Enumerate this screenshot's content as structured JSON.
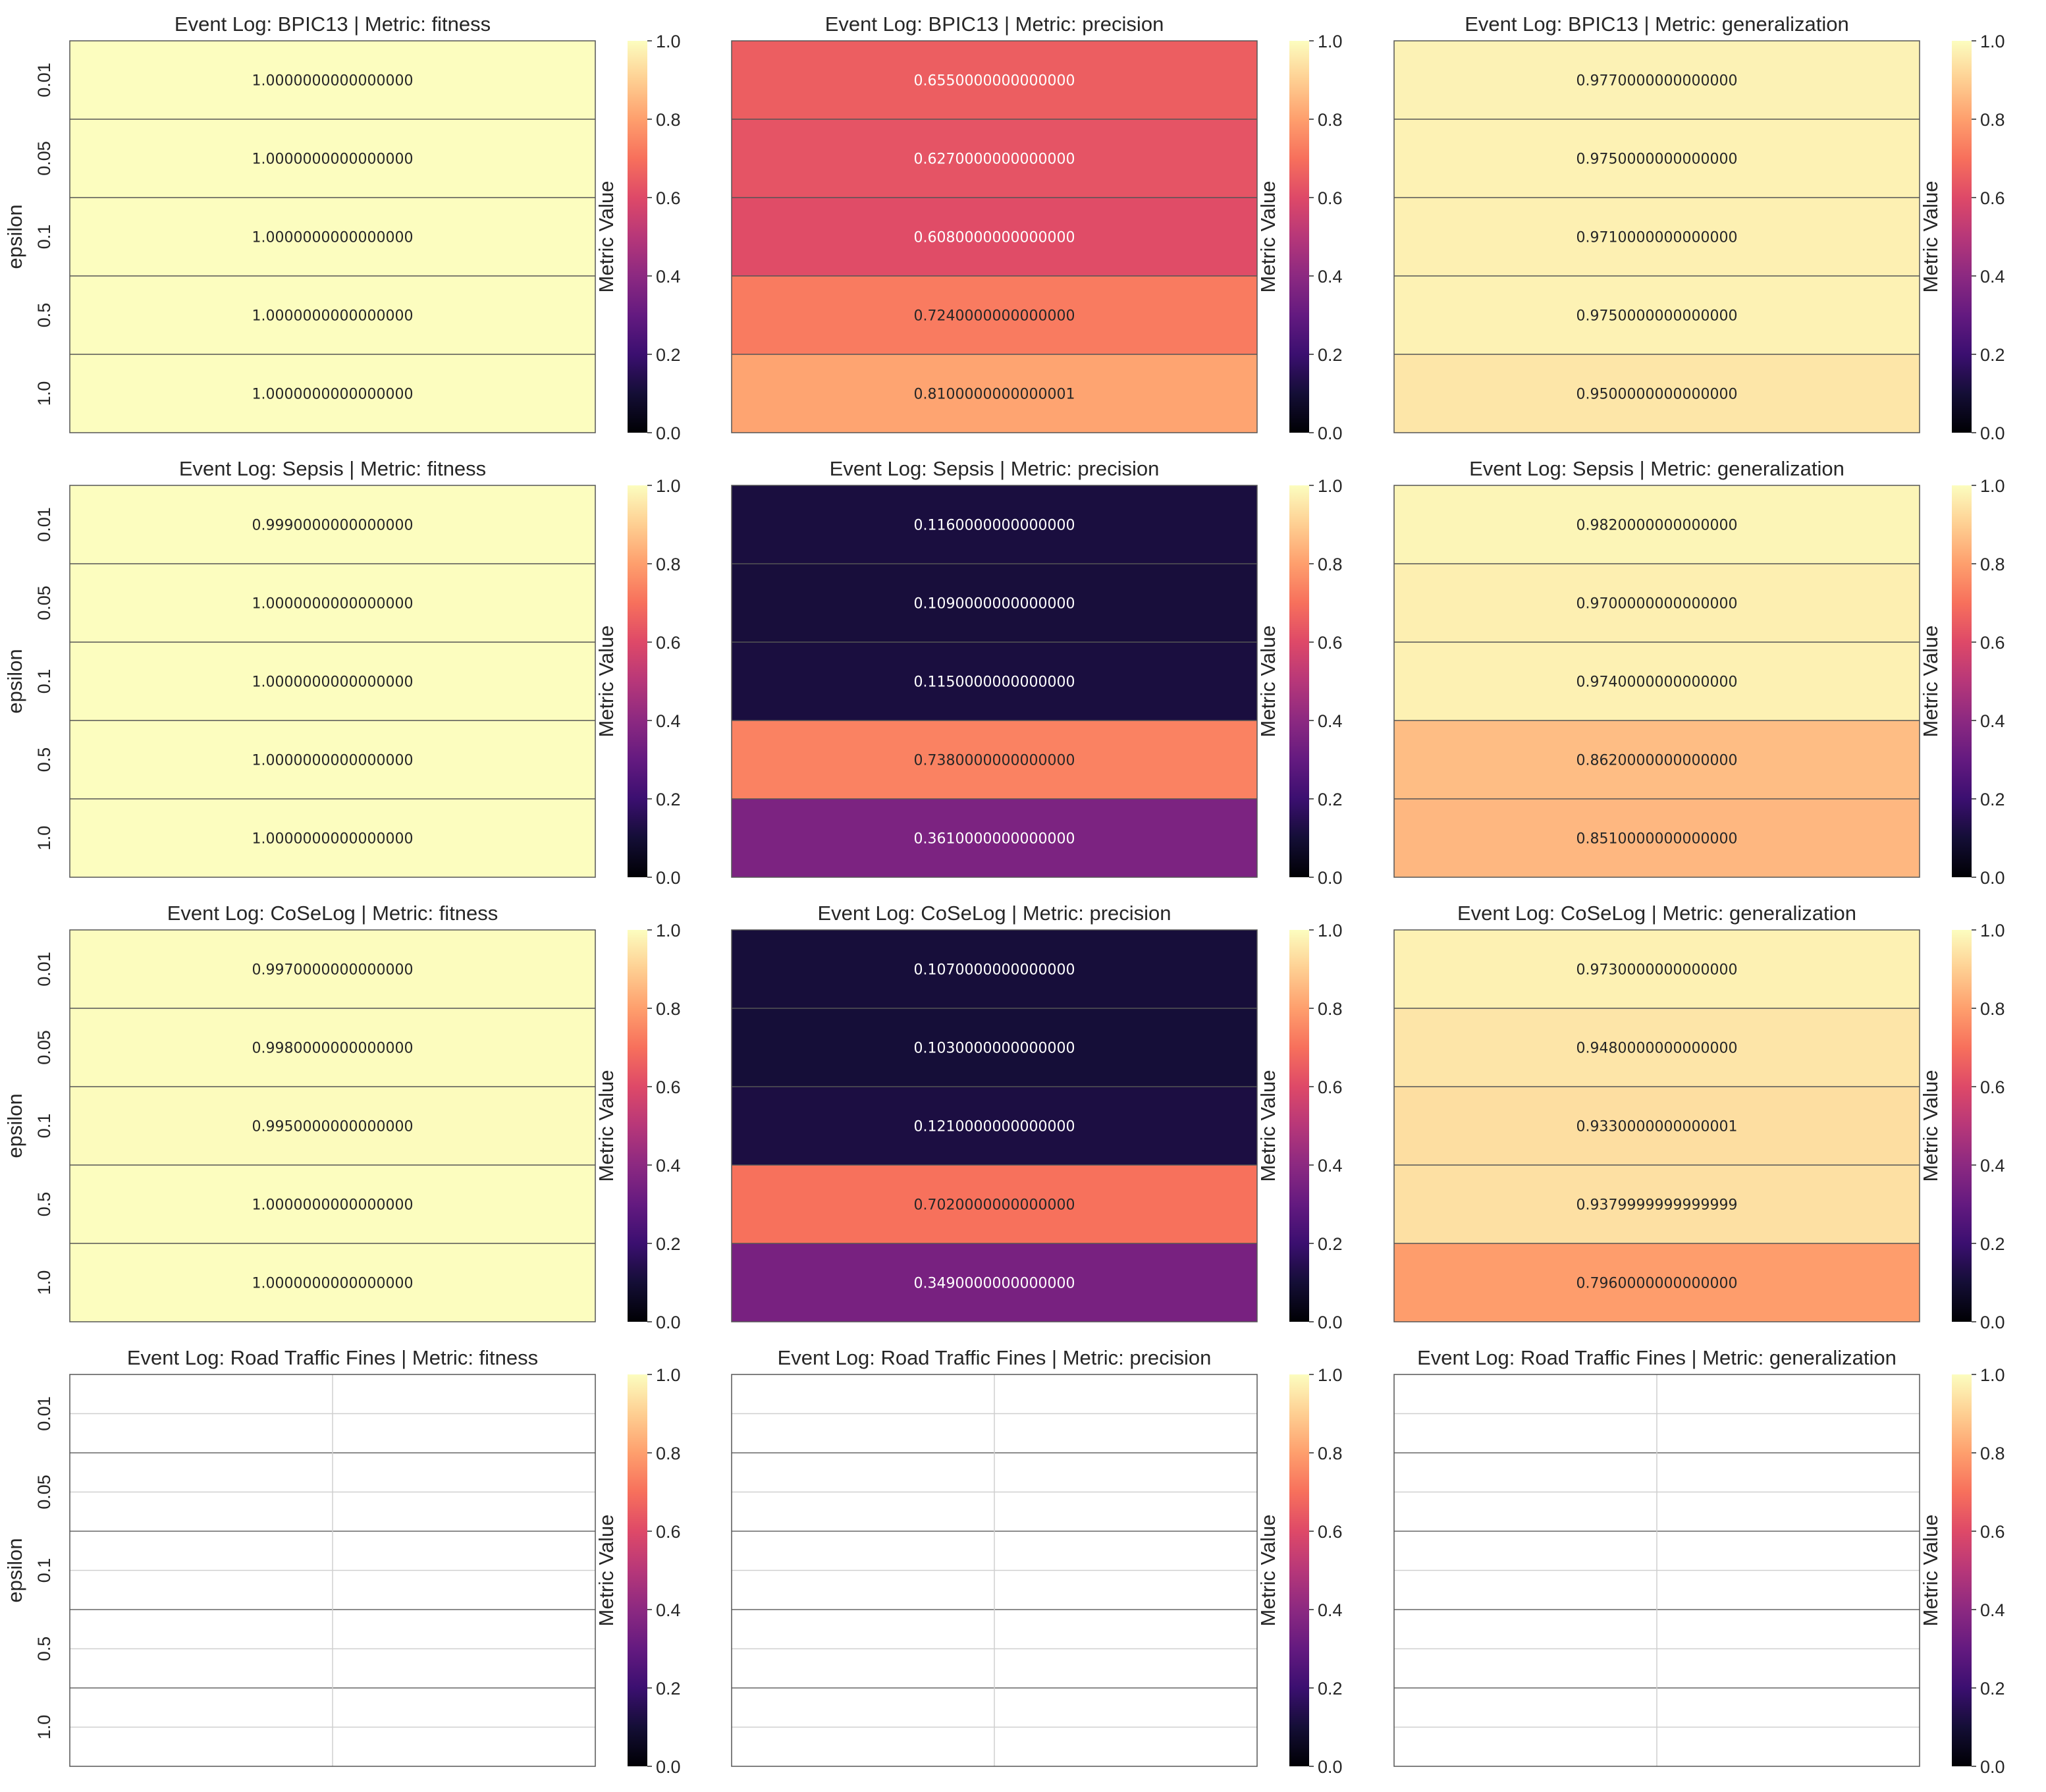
{
  "figure": {
    "ylabel": "epsilon",
    "colorbar_label": "Metric Value",
    "colormap": "magma",
    "colorbar_ticks": [
      "0.0",
      "0.2",
      "0.4",
      "0.6",
      "0.8",
      "1.0"
    ]
  },
  "chart_data": [
    {
      "type": "heatmap",
      "title": "Event Log: BPIC13 | Metric: fitness",
      "ylabel": "epsilon",
      "yticks": [
        "0.01",
        "0.05",
        "0.1",
        "0.5",
        "1.0"
      ],
      "vmin": 0,
      "vmax": 1,
      "values": [
        1.0,
        1.0,
        1.0,
        1.0,
        1.0
      ],
      "labels": [
        "1.0000000000000000",
        "1.0000000000000000",
        "1.0000000000000000",
        "1.0000000000000000",
        "1.0000000000000000"
      ]
    },
    {
      "type": "heatmap",
      "title": "Event Log: BPIC13 | Metric: precision",
      "ylabel": "",
      "yticks": [],
      "vmin": 0,
      "vmax": 1,
      "values": [
        0.655,
        0.627,
        0.608,
        0.724,
        0.81
      ],
      "labels": [
        "0.6550000000000000",
        "0.6270000000000000",
        "0.6080000000000000",
        "0.7240000000000000",
        "0.8100000000000001"
      ]
    },
    {
      "type": "heatmap",
      "title": "Event Log: BPIC13 | Metric: generalization",
      "ylabel": "",
      "yticks": [],
      "vmin": 0,
      "vmax": 1,
      "values": [
        0.977,
        0.975,
        0.971,
        0.975,
        0.95
      ],
      "labels": [
        "0.9770000000000000",
        "0.9750000000000000",
        "0.9710000000000000",
        "0.9750000000000000",
        "0.9500000000000000"
      ]
    },
    {
      "type": "heatmap",
      "title": "Event Log: Sepsis | Metric: fitness",
      "ylabel": "epsilon",
      "yticks": [
        "0.01",
        "0.05",
        "0.1",
        "0.5",
        "1.0"
      ],
      "vmin": 0,
      "vmax": 1,
      "values": [
        0.999,
        1.0,
        1.0,
        1.0,
        1.0
      ],
      "labels": [
        "0.9990000000000000",
        "1.0000000000000000",
        "1.0000000000000000",
        "1.0000000000000000",
        "1.0000000000000000"
      ]
    },
    {
      "type": "heatmap",
      "title": "Event Log: Sepsis | Metric: precision",
      "ylabel": "",
      "yticks": [],
      "vmin": 0,
      "vmax": 1,
      "values": [
        0.116,
        0.109,
        0.115,
        0.738,
        0.361
      ],
      "labels": [
        "0.1160000000000000",
        "0.1090000000000000",
        "0.1150000000000000",
        "0.7380000000000000",
        "0.3610000000000000"
      ]
    },
    {
      "type": "heatmap",
      "title": "Event Log: Sepsis | Metric: generalization",
      "ylabel": "",
      "yticks": [],
      "vmin": 0,
      "vmax": 1,
      "values": [
        0.982,
        0.97,
        0.974,
        0.862,
        0.851
      ],
      "labels": [
        "0.9820000000000000",
        "0.9700000000000000",
        "0.9740000000000000",
        "0.8620000000000000",
        "0.8510000000000000"
      ]
    },
    {
      "type": "heatmap",
      "title": "Event Log: CoSeLog | Metric: fitness",
      "ylabel": "epsilon",
      "yticks": [
        "0.01",
        "0.05",
        "0.1",
        "0.5",
        "1.0"
      ],
      "vmin": 0,
      "vmax": 1,
      "values": [
        0.997,
        0.998,
        0.995,
        1.0,
        1.0
      ],
      "labels": [
        "0.9970000000000000",
        "0.9980000000000000",
        "0.9950000000000000",
        "1.0000000000000000",
        "1.0000000000000000"
      ]
    },
    {
      "type": "heatmap",
      "title": "Event Log: CoSeLog | Metric: precision",
      "ylabel": "",
      "yticks": [],
      "vmin": 0,
      "vmax": 1,
      "values": [
        0.107,
        0.103,
        0.121,
        0.702,
        0.349
      ],
      "labels": [
        "0.1070000000000000",
        "0.1030000000000000",
        "0.1210000000000000",
        "0.7020000000000000",
        "0.3490000000000000"
      ]
    },
    {
      "type": "heatmap",
      "title": "Event Log: CoSeLog | Metric: generalization",
      "ylabel": "",
      "yticks": [],
      "vmin": 0,
      "vmax": 1,
      "values": [
        0.973,
        0.948,
        0.933,
        0.938,
        0.796
      ],
      "labels": [
        "0.9730000000000000",
        "0.9480000000000000",
        "0.9330000000000001",
        "0.9379999999999999",
        "0.7960000000000000"
      ]
    },
    {
      "type": "heatmap",
      "title": "Event Log: Road Traffic Fines | Metric: fitness",
      "ylabel": "epsilon",
      "yticks": [
        "0.01",
        "0.05",
        "0.1",
        "0.5",
        "1.0"
      ],
      "vmin": 0,
      "vmax": 1,
      "values": [],
      "labels": []
    },
    {
      "type": "heatmap",
      "title": "Event Log: Road Traffic Fines | Metric: precision",
      "ylabel": "",
      "yticks": [],
      "vmin": 0,
      "vmax": 1,
      "values": [],
      "labels": []
    },
    {
      "type": "heatmap",
      "title": "Event Log: Road Traffic Fines | Metric: generalization",
      "ylabel": "",
      "yticks": [],
      "vmin": 0,
      "vmax": 1,
      "values": [],
      "labels": []
    }
  ]
}
